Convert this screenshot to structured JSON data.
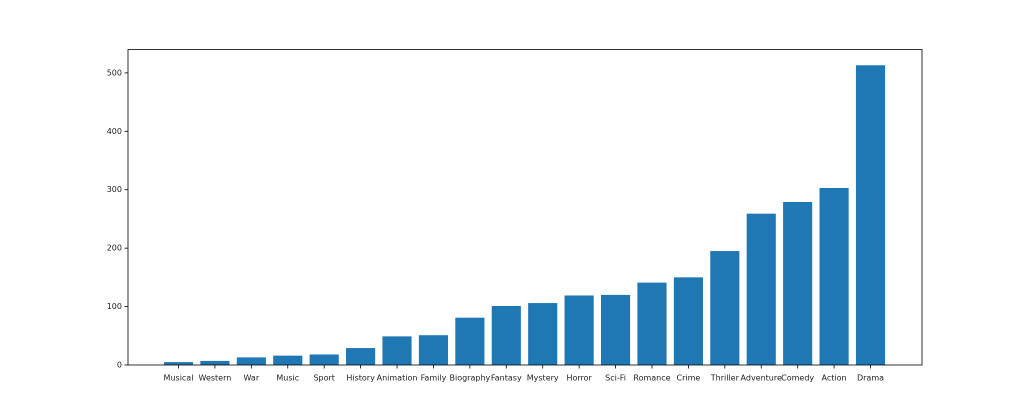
{
  "chart_data": {
    "type": "bar",
    "title": "",
    "xlabel": "",
    "ylabel": "",
    "categories": [
      "Musical",
      "Western",
      "War",
      "Music",
      "Sport",
      "History",
      "Animation",
      "Family",
      "Biography",
      "Fantasy",
      "Mystery",
      "Horror",
      "Sci-Fi",
      "Romance",
      "Crime",
      "Thriller",
      "Adventure",
      "Comedy",
      "Action",
      "Drama"
    ],
    "values": [
      5,
      7,
      13,
      16,
      18,
      29,
      49,
      51,
      81,
      101,
      106,
      119,
      120,
      141,
      150,
      195,
      259,
      279,
      303,
      513
    ],
    "ylim": [
      0,
      540
    ],
    "yticks": [
      0,
      100,
      200,
      300,
      400,
      500
    ],
    "grid": false,
    "colors": {
      "bar": "#1f77b4"
    }
  }
}
